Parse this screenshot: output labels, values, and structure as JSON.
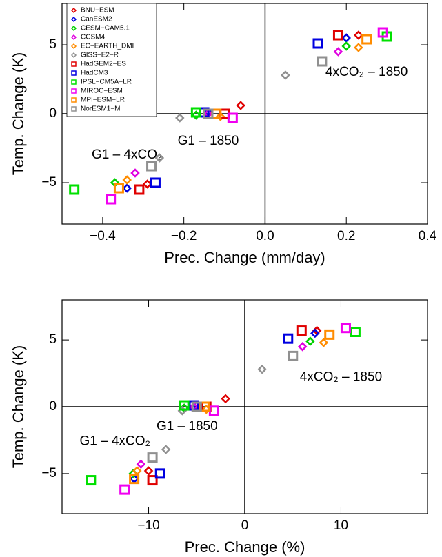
{
  "chart_data": [
    {
      "type": "scatter",
      "xlabel": "Prec. Change (mm/day)",
      "ylabel": "Temp. Change (K)",
      "xlim": [
        -0.5,
        0.4
      ],
      "ylim": [
        -8,
        8
      ],
      "xticks": [
        {
          "value": -0.4,
          "label": "−0.4"
        },
        {
          "value": -0.2,
          "label": "−0.2"
        },
        {
          "value": 0,
          "label": "0.0"
        },
        {
          "value": 0.2,
          "label": "0.2"
        },
        {
          "value": 0.4,
          "label": "0.4"
        }
      ],
      "yticks": [
        {
          "value": -5,
          "label": "−5"
        },
        0,
        5
      ],
      "legend": "upper left",
      "annotations": [
        {
          "text": "4xCO₂ – 1850",
          "x": 0.25,
          "y": 3.0
        },
        {
          "text": "G1 – 1850",
          "x": -0.14,
          "y": -2.0
        },
        {
          "text": "G1 – 4xCO₂",
          "x": -0.34,
          "y": -3.0
        }
      ],
      "series": [
        {
          "name": "BNU−ESM",
          "color": "#e00000",
          "marker": "diamond",
          "x": [
            -0.06,
            0.23,
            -0.29
          ],
          "y": [
            0.6,
            5.7,
            -5.1
          ]
        },
        {
          "name": "CanESM2",
          "color": "#0000e0",
          "marker": "diamond",
          "x": [
            -0.14,
            0.2,
            -0.34
          ],
          "y": [
            0.1,
            5.5,
            -5.4
          ]
        },
        {
          "name": "CESM−CAM5.1",
          "color": "#00d000",
          "marker": "diamond",
          "x": [
            -0.17,
            0.2,
            -0.37
          ],
          "y": [
            -0.1,
            4.9,
            -5.0
          ]
        },
        {
          "name": "CCSM4",
          "color": "#e000e0",
          "marker": "diamond",
          "x": [
            -0.14,
            0.18,
            -0.32
          ],
          "y": [
            0.0,
            4.5,
            -4.3
          ]
        },
        {
          "name": "EC−EARTH_DMI",
          "color": "#ff8c00",
          "marker": "diamond",
          "x": [
            -0.11,
            0.23,
            -0.34
          ],
          "y": [
            -0.2,
            4.8,
            -4.8
          ]
        },
        {
          "name": "GISS−E2−R",
          "color": "#909090",
          "marker": "diamond",
          "x": [
            -0.21,
            0.05,
            -0.26
          ],
          "y": [
            -0.3,
            2.8,
            -3.2
          ]
        },
        {
          "name": "HadGEM2−ES",
          "color": "#e00000",
          "marker": "square",
          "x": [
            -0.1,
            0.18,
            -0.31
          ],
          "y": [
            0.0,
            5.7,
            -5.5
          ]
        },
        {
          "name": "HadCM3",
          "color": "#0000e0",
          "marker": "square",
          "x": [
            -0.15,
            0.13,
            -0.27
          ],
          "y": [
            0.1,
            5.1,
            -5.0
          ]
        },
        {
          "name": "IPSL−CM5A−LR",
          "color": "#00e000",
          "marker": "square",
          "x": [
            -0.17,
            0.3,
            -0.47
          ],
          "y": [
            0.1,
            5.6,
            -5.5
          ]
        },
        {
          "name": "MIROC−ESM",
          "color": "#f000f0",
          "marker": "square",
          "x": [
            -0.08,
            0.29,
            -0.38
          ],
          "y": [
            -0.3,
            5.9,
            -6.2
          ]
        },
        {
          "name": "MPI−ESM−LR",
          "color": "#ff8c00",
          "marker": "square",
          "x": [
            -0.12,
            0.25,
            -0.36
          ],
          "y": [
            0.0,
            5.4,
            -5.4
          ]
        },
        {
          "name": "NorESM1−M",
          "color": "#909090",
          "marker": "square",
          "x": [
            -0.14,
            0.14,
            -0.28
          ],
          "y": [
            0.0,
            3.8,
            -3.8
          ]
        }
      ]
    },
    {
      "type": "scatter",
      "xlabel": "Prec. Change (%)",
      "ylabel": "Temp. Change (K)",
      "xlim": [
        -19,
        19
      ],
      "ylim": [
        -8,
        8
      ],
      "xticks": [
        {
          "value": -10,
          "label": "−10"
        },
        0,
        10
      ],
      "yticks": [
        {
          "value": -5,
          "label": "−5"
        },
        0,
        5
      ],
      "annotations": [
        {
          "text": "4xCO₂ – 1850",
          "x": 10,
          "y": 2.2
        },
        {
          "text": "G1 – 1850",
          "x": -6,
          "y": -1.5
        },
        {
          "text": "G1 – 4xCO₂",
          "x": -13.5,
          "y": -2.6
        }
      ],
      "series": [
        {
          "color": "#e00000",
          "marker": "diamond",
          "x": [
            -2.0,
            7.5,
            -10.0
          ],
          "y": [
            0.6,
            5.7,
            -4.8
          ]
        },
        {
          "color": "#0000e0",
          "marker": "diamond",
          "x": [
            -5.0,
            7.3,
            -11.5
          ],
          "y": [
            0.1,
            5.5,
            -5.4
          ]
        },
        {
          "color": "#00d000",
          "marker": "diamond",
          "x": [
            -6.3,
            6.8,
            -11.6
          ],
          "y": [
            -0.1,
            4.9,
            -5.0
          ]
        },
        {
          "color": "#e000e0",
          "marker": "diamond",
          "x": [
            -5.3,
            6.0,
            -10.8
          ],
          "y": [
            0.0,
            4.5,
            -4.3
          ]
        },
        {
          "color": "#ff8c00",
          "marker": "diamond",
          "x": [
            -4.0,
            8.2,
            -11.2
          ],
          "y": [
            -0.2,
            4.8,
            -4.8
          ]
        },
        {
          "color": "#909090",
          "marker": "diamond",
          "x": [
            -6.5,
            1.8,
            -8.2
          ],
          "y": [
            -0.3,
            2.8,
            -3.2
          ]
        },
        {
          "color": "#e00000",
          "marker": "square",
          "x": [
            -4.0,
            5.9,
            -9.6
          ],
          "y": [
            0.0,
            5.7,
            -5.5
          ]
        },
        {
          "color": "#0000e0",
          "marker": "square",
          "x": [
            -5.3,
            4.5,
            -8.8
          ],
          "y": [
            0.1,
            5.1,
            -5.0
          ]
        },
        {
          "color": "#00e000",
          "marker": "square",
          "x": [
            -6.3,
            11.5,
            -16.0
          ],
          "y": [
            0.1,
            5.6,
            -5.5
          ]
        },
        {
          "color": "#f000f0",
          "marker": "square",
          "x": [
            -3.2,
            10.5,
            -12.5
          ],
          "y": [
            -0.3,
            5.9,
            -6.2
          ]
        },
        {
          "color": "#ff8c00",
          "marker": "square",
          "x": [
            -4.2,
            8.8,
            -11.5
          ],
          "y": [
            0.0,
            5.4,
            -5.4
          ]
        },
        {
          "color": "#909090",
          "marker": "square",
          "x": [
            -5.0,
            5.0,
            -9.6
          ],
          "y": [
            0.0,
            3.8,
            -3.8
          ]
        }
      ]
    }
  ]
}
